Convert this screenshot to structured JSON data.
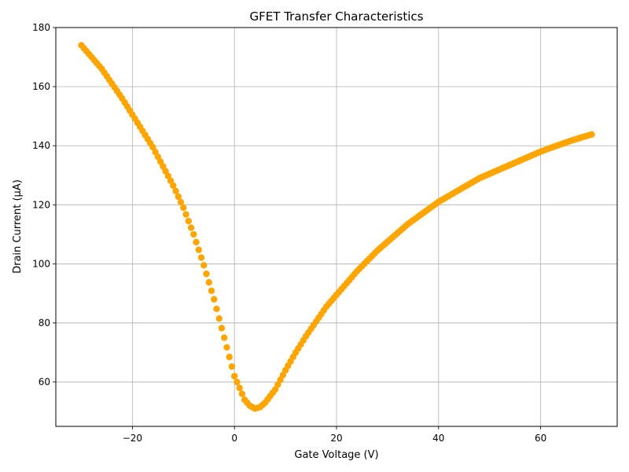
{
  "chart_data": {
    "type": "scatter",
    "title": "GFET Transfer Characteristics",
    "xlabel": "Gate Voltage (V)",
    "ylabel": "Drain Current (μA)",
    "xlim": [
      -35,
      75
    ],
    "ylim": [
      45,
      180
    ],
    "xticks": [
      -20,
      0,
      20,
      40,
      60
    ],
    "yticks": [
      60,
      80,
      100,
      120,
      140,
      160,
      180
    ],
    "grid": true,
    "marker_color": "#FFA500",
    "series": [
      {
        "x_range": [
          -30,
          70
        ],
        "point_count": 201,
        "points": [
          [
            -30,
            174
          ],
          [
            -28,
            170
          ],
          [
            -26,
            166
          ],
          [
            -24,
            161
          ],
          [
            -22,
            156
          ],
          [
            -20,
            150.5
          ],
          [
            -18,
            145
          ],
          [
            -16,
            139.5
          ],
          [
            -14,
            133
          ],
          [
            -12,
            126.5
          ],
          [
            -10,
            119
          ],
          [
            -8,
            110
          ],
          [
            -6,
            99.5
          ],
          [
            -4,
            88
          ],
          [
            -2,
            75
          ],
          [
            0,
            62
          ],
          [
            2,
            54
          ],
          [
            3,
            52
          ],
          [
            4,
            51
          ],
          [
            5,
            51.5
          ],
          [
            6,
            53
          ],
          [
            8,
            57.5
          ],
          [
            10,
            64
          ],
          [
            12,
            70
          ],
          [
            14,
            75.5
          ],
          [
            16,
            80.5
          ],
          [
            18,
            85.5
          ],
          [
            20,
            89.5
          ],
          [
            22,
            93.5
          ],
          [
            24,
            97.5
          ],
          [
            26,
            101
          ],
          [
            28,
            104.5
          ],
          [
            30,
            107.5
          ],
          [
            32,
            110.5
          ],
          [
            34,
            113.5
          ],
          [
            36,
            116
          ],
          [
            38,
            118.5
          ],
          [
            40,
            121
          ],
          [
            42,
            123
          ],
          [
            44,
            125
          ],
          [
            46,
            127
          ],
          [
            48,
            129
          ],
          [
            50,
            130.5
          ],
          [
            52,
            132
          ],
          [
            54,
            133.5
          ],
          [
            56,
            135
          ],
          [
            58,
            136.5
          ],
          [
            60,
            138
          ],
          [
            62,
            139.3
          ],
          [
            64,
            140.5
          ],
          [
            66,
            141.7
          ],
          [
            68,
            142.8
          ],
          [
            70,
            143.8
          ]
        ]
      }
    ]
  }
}
